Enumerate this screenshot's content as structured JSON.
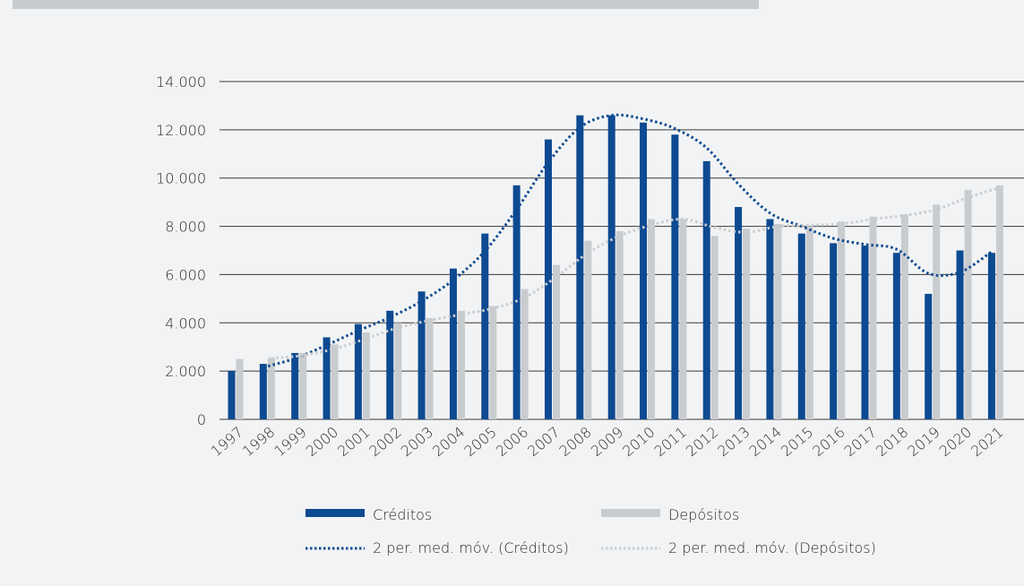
{
  "chart_data": {
    "type": "bar",
    "categories": [
      "1997",
      "1998",
      "1999",
      "2000",
      "2001",
      "2002",
      "2003",
      "2004",
      "2005",
      "2006",
      "2007",
      "2008",
      "2009",
      "2010",
      "2011",
      "2012",
      "2013",
      "2014",
      "2015",
      "2016",
      "2017",
      "2018",
      "2019",
      "2020",
      "2021"
    ],
    "series": [
      {
        "name": "Créditos",
        "color": "#0d4a91",
        "values": [
          2000,
          2300,
          2750,
          3400,
          3950,
          4500,
          5300,
          6250,
          7700,
          9700,
          11600,
          12600,
          12600,
          12300,
          11800,
          10700,
          8800,
          8300,
          7700,
          7300,
          7200,
          6900,
          5200,
          7000,
          6900
        ]
      },
      {
        "name": "Depósitos",
        "color": "#c9cccf",
        "values": [
          2500,
          2550,
          2750,
          3100,
          3600,
          4000,
          4200,
          4500,
          4700,
          5400,
          6400,
          7400,
          7800,
          8300,
          8300,
          7600,
          7900,
          8100,
          8000,
          8200,
          8400,
          8500,
          8900,
          9500,
          9700
        ]
      }
    ],
    "trendlines": [
      {
        "name": "2 per. med. móv. (Créditos)",
        "color": "#0d4a91"
      },
      {
        "name": "2 per. med. móv. (Depósitos)",
        "color": "#c9cccf"
      }
    ],
    "yticks": [
      "0",
      "2.000",
      "4.000",
      "6.000",
      "8.000",
      "10.000",
      "12.000",
      "14.000"
    ],
    "ylim": [
      0,
      14000
    ],
    "grid": true,
    "legend_position": "bottom"
  }
}
